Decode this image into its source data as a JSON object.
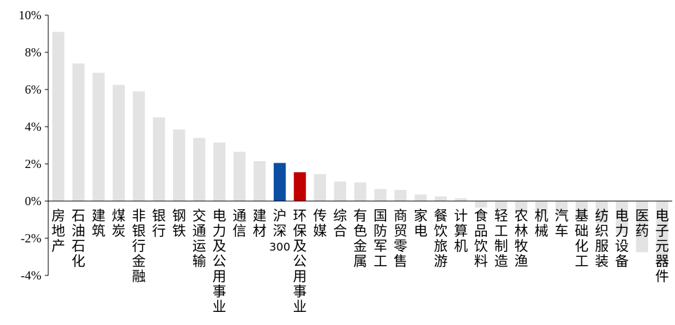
{
  "chart_data": {
    "type": "bar",
    "title": "",
    "xlabel": "",
    "ylabel": "",
    "ylim": [
      -4,
      10
    ],
    "yticks": [
      "10%",
      "8%",
      "6%",
      "4%",
      "2%",
      "0%",
      "-2%",
      "-4%"
    ],
    "grid": false,
    "legend": "none",
    "colors": {
      "default": "#e3e3e3",
      "benchmark": "#0b4ea2",
      "highlight": "#c00000"
    },
    "categories": [
      "房地产",
      "石油石化",
      "建筑",
      "煤炭",
      "非银行金融",
      "银行",
      "钢铁",
      "交通运输",
      "电力及公用事业",
      "通信",
      "建材",
      "沪深300",
      "环保及公用事业",
      "传媒",
      "综合",
      "有色金属",
      "国防军工",
      "商贸零售",
      "家电",
      "餐饮旅游",
      "计算机",
      "食品饮料",
      "轻工制造",
      "农林牧渔",
      "机械",
      "汽车",
      "基础化工",
      "纺织服装",
      "电力设备",
      "医药",
      "电子元器件"
    ],
    "values": [
      9.1,
      7.4,
      6.9,
      6.25,
      5.9,
      4.5,
      3.85,
      3.4,
      3.15,
      2.65,
      2.15,
      2.05,
      1.55,
      1.45,
      1.05,
      1.0,
      0.65,
      0.6,
      0.35,
      0.25,
      0.15,
      -0.35,
      -0.45,
      -0.55,
      -0.7,
      -0.8,
      -1.0,
      -1.2,
      -1.75,
      -2.75,
      -3.45
    ],
    "bar_colors": [
      "default",
      "default",
      "default",
      "default",
      "default",
      "default",
      "default",
      "default",
      "default",
      "default",
      "default",
      "benchmark",
      "highlight",
      "default",
      "default",
      "default",
      "default",
      "default",
      "default",
      "default",
      "default",
      "default",
      "default",
      "default",
      "default",
      "default",
      "default",
      "default",
      "default",
      "default",
      "default"
    ]
  }
}
